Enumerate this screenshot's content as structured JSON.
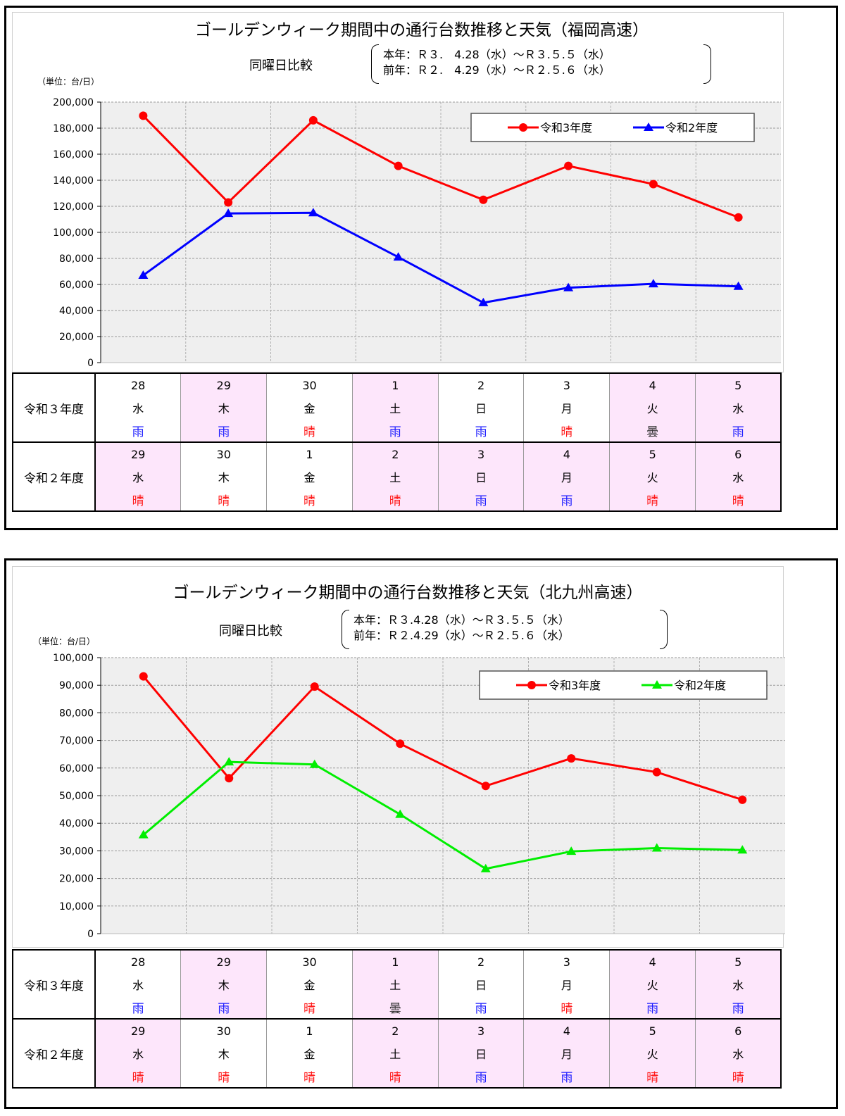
{
  "panels": [
    {
      "title": "ゴールデンウィーク期間中の通行台数推移と天気（福岡高速）",
      "compare_label": "同曜日比較",
      "period_this_year": "本年：Ｒ３.　4.28（水）～Ｒ３.５.５（水）",
      "period_last_year": "前年：Ｒ２.　4.29（水）～Ｒ２.５.６（水）",
      "unit": "（単位：台/日）",
      "table": {
        "rows": [
          {
            "label": "令和３年度",
            "days": [
              "28",
              "29",
              "30",
              "1",
              "2",
              "3",
              "4",
              "5"
            ],
            "weekdays": [
              "水",
              "木",
              "金",
              "土",
              "日",
              "月",
              "火",
              "水"
            ],
            "weather": [
              "雨",
              "雨",
              "晴",
              "雨",
              "雨",
              "晴",
              "曇",
              "雨"
            ],
            "pink": [
              false,
              true,
              false,
              true,
              false,
              false,
              true,
              true
            ]
          },
          {
            "label": "令和２年度",
            "days": [
              "29",
              "30",
              "1",
              "2",
              "3",
              "4",
              "5",
              "6"
            ],
            "weekdays": [
              "水",
              "木",
              "金",
              "土",
              "日",
              "月",
              "火",
              "水"
            ],
            "weather": [
              "晴",
              "晴",
              "晴",
              "晴",
              "雨",
              "雨",
              "晴",
              "晴"
            ],
            "pink": [
              true,
              false,
              false,
              true,
              true,
              true,
              true,
              true
            ]
          }
        ]
      }
    },
    {
      "title": "ゴールデンウィーク期間中の通行台数推移と天気（北九州高速）",
      "compare_label": "同曜日比較",
      "period_this_year": "本年：Ｒ３.4.28（水）～Ｒ３.５.５（水）",
      "period_last_year": "前年：Ｒ２.4.29（水）～Ｒ２.５.６（水）",
      "unit": "（単位：台/日）",
      "table": {
        "rows": [
          {
            "label": "令和３年度",
            "days": [
              "28",
              "29",
              "30",
              "1",
              "2",
              "3",
              "4",
              "5"
            ],
            "weekdays": [
              "水",
              "木",
              "金",
              "土",
              "日",
              "月",
              "火",
              "水"
            ],
            "weather": [
              "雨",
              "雨",
              "晴",
              "曇",
              "雨",
              "晴",
              "雨",
              "雨"
            ],
            "pink": [
              false,
              true,
              false,
              true,
              false,
              false,
              true,
              true
            ]
          },
          {
            "label": "令和２年度",
            "days": [
              "29",
              "30",
              "1",
              "2",
              "3",
              "4",
              "5",
              "6"
            ],
            "weekdays": [
              "水",
              "木",
              "金",
              "土",
              "日",
              "月",
              "火",
              "水"
            ],
            "weather": [
              "晴",
              "晴",
              "晴",
              "晴",
              "雨",
              "雨",
              "晴",
              "晴"
            ],
            "pink": [
              true,
              false,
              false,
              true,
              true,
              true,
              true,
              true
            ]
          }
        ]
      }
    }
  ],
  "chart_data": [
    {
      "type": "line",
      "title": "ゴールデンウィーク期間中の通行台数推移と天気（福岡高速）",
      "ylim": [
        0,
        200000
      ],
      "ytick_step": 20000,
      "yticks": [
        "0",
        "20,000",
        "40,000",
        "60,000",
        "80,000",
        "100,000",
        "120,000",
        "140,000",
        "160,000",
        "180,000",
        "200,000"
      ],
      "grid": true,
      "legend_position": "top-right",
      "series": [
        {
          "name": "令和3年度",
          "color": "#ff0000",
          "marker": "circle",
          "values": [
            189500,
            123000,
            186000,
            151000,
            125000,
            151000,
            137000,
            111500
          ]
        },
        {
          "name": "令和2年度",
          "color": "#0000ff",
          "marker": "triangle",
          "values": [
            67000,
            114500,
            115000,
            81000,
            46000,
            57500,
            60500,
            58500
          ]
        }
      ]
    },
    {
      "type": "line",
      "title": "ゴールデンウィーク期間中の通行台数推移と天気（北九州高速）",
      "ylim": [
        0,
        100000
      ],
      "ytick_step": 10000,
      "yticks": [
        "0",
        "10,000",
        "20,000",
        "30,000",
        "40,000",
        "50,000",
        "60,000",
        "70,000",
        "80,000",
        "90,000",
        "100,000"
      ],
      "grid": true,
      "legend_position": "top-right",
      "series": [
        {
          "name": "令和3年度",
          "color": "#ff0000",
          "marker": "circle",
          "values": [
            93200,
            56300,
            89500,
            68800,
            53500,
            63500,
            58500,
            48500
          ]
        },
        {
          "name": "令和2年度",
          "color": "#00ee00",
          "marker": "triangle",
          "values": [
            35800,
            62200,
            61300,
            43200,
            23500,
            29800,
            31000,
            30300
          ]
        }
      ]
    }
  ]
}
